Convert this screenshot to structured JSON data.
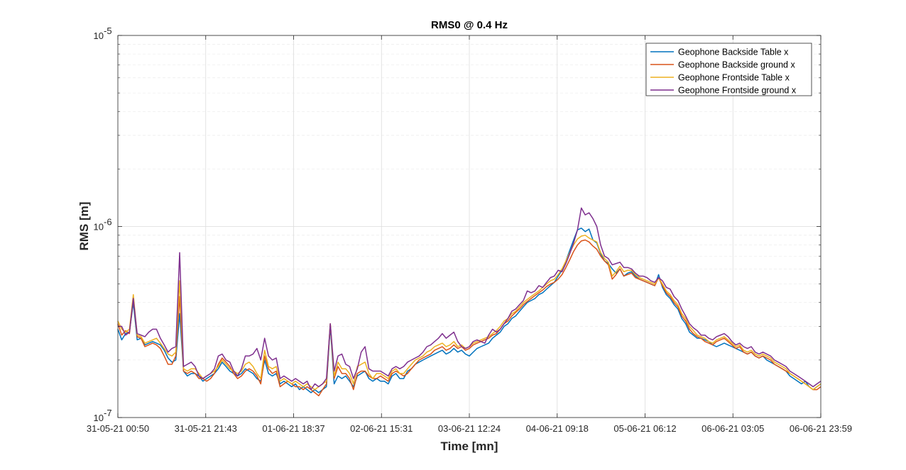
{
  "chart_data": {
    "type": "line",
    "title": "RMS0 @ 0.4 Hz",
    "xlabel": "Time [mn]",
    "ylabel": "RMS [m]",
    "yscale": "log",
    "ylim": [
      1e-07,
      1e-05
    ],
    "y_ticks": [
      {
        "base": "10",
        "exp": "-7"
      },
      {
        "base": "10",
        "exp": "-6"
      },
      {
        "base": "10",
        "exp": "-5"
      }
    ],
    "x_tick_labels": [
      "31-05-21 00:50",
      "31-05-21 21:43",
      "01-06-21 18:37",
      "02-06-21 15:31",
      "03-06-21 12:24",
      "04-06-21 09:18",
      "05-06-21 06:12",
      "06-06-21 03:05",
      "06-06-21 23:59"
    ],
    "grid": true,
    "legend_position": "top-right",
    "series_colors": [
      "#0072BD",
      "#D95319",
      "#EDB120",
      "#7E2F8E"
    ],
    "series": [
      {
        "name": "Geophone Backside Table x",
        "values": [
          2.9e-07,
          2.55e-07,
          2.75e-07,
          2.8e-07,
          4e-07,
          2.55e-07,
          2.6e-07,
          2.4e-07,
          2.45e-07,
          2.5e-07,
          2.45e-07,
          2.4e-07,
          2.25e-07,
          2.05e-07,
          1.95e-07,
          2e-07,
          3.5e-07,
          1.75e-07,
          1.65e-07,
          1.7e-07,
          1.7e-07,
          1.65e-07,
          1.55e-07,
          1.6e-07,
          1.65e-07,
          1.7e-07,
          1.8e-07,
          1.95e-07,
          1.85e-07,
          1.75e-07,
          1.7e-07,
          1.65e-07,
          1.7e-07,
          1.8e-07,
          1.75e-07,
          1.7e-07,
          1.6e-07,
          1.55e-07,
          2e-07,
          1.7e-07,
          1.65e-07,
          1.7e-07,
          1.5e-07,
          1.55e-07,
          1.5e-07,
          1.45e-07,
          1.5e-07,
          1.4e-07,
          1.45e-07,
          1.4e-07,
          1.35e-07,
          1.4e-07,
          1.35e-07,
          1.4e-07,
          1.45e-07,
          3e-07,
          1.5e-07,
          1.65e-07,
          1.6e-07,
          1.65e-07,
          1.55e-07,
          1.45e-07,
          1.65e-07,
          1.7e-07,
          1.75e-07,
          1.6e-07,
          1.55e-07,
          1.6e-07,
          1.55e-07,
          1.55e-07,
          1.5e-07,
          1.65e-07,
          1.7e-07,
          1.6e-07,
          1.6e-07,
          1.75e-07,
          1.8e-07,
          1.9e-07,
          1.95e-07,
          2e-07,
          2.05e-07,
          2.1e-07,
          2.15e-07,
          2.2e-07,
          2.25e-07,
          2.15e-07,
          2.2e-07,
          2.3e-07,
          2.2e-07,
          2.25e-07,
          2.15e-07,
          2.1e-07,
          2.2e-07,
          2.3e-07,
          2.35e-07,
          2.4e-07,
          2.45e-07,
          2.6e-07,
          2.7e-07,
          2.8e-07,
          3e-07,
          3.1e-07,
          3.3e-07,
          3.4e-07,
          3.6e-07,
          3.8e-07,
          4e-07,
          4.1e-07,
          4.2e-07,
          4.4e-07,
          4.5e-07,
          4.7e-07,
          4.9e-07,
          5.1e-07,
          5.5e-07,
          5.9e-07,
          6.6e-07,
          7.5e-07,
          8.5e-07,
          9.6e-07,
          9.8e-07,
          9.4e-07,
          9.7e-07,
          8.5e-07,
          8.2e-07,
          7.2e-07,
          6.6e-07,
          6.4e-07,
          6e-07,
          5.7e-07,
          6e-07,
          5.5e-07,
          5.7e-07,
          5.8e-07,
          5.5e-07,
          5.3e-07,
          5.2e-07,
          5.1e-07,
          5e-07,
          4.9e-07,
          5.6e-07,
          4.8e-07,
          4.4e-07,
          4.2e-07,
          3.9e-07,
          3.7e-07,
          3.3e-07,
          3.1e-07,
          2.8e-07,
          2.7e-07,
          2.6e-07,
          2.6e-07,
          2.55e-07,
          2.5e-07,
          2.4e-07,
          2.35e-07,
          2.4e-07,
          2.45e-07,
          2.4e-07,
          2.35e-07,
          2.3e-07,
          2.25e-07,
          2.2e-07,
          2.15e-07,
          2.2e-07,
          2.1e-07,
          2.05e-07,
          2.1e-07,
          2e-07,
          1.95e-07,
          1.9e-07,
          1.85e-07,
          1.8e-07,
          1.75e-07,
          1.65e-07,
          1.6e-07,
          1.55e-07,
          1.5e-07,
          1.55e-07,
          1.45e-07,
          1.4e-07,
          1.45e-07,
          1.5e-07
        ]
      },
      {
        "name": "Geophone Backside ground x",
        "values": [
          3.1e-07,
          2.7e-07,
          2.85e-07,
          2.75e-07,
          4.2e-07,
          2.65e-07,
          2.6e-07,
          2.35e-07,
          2.4e-07,
          2.45e-07,
          2.4e-07,
          2.3e-07,
          2.1e-07,
          1.9e-07,
          1.9e-07,
          2.1e-07,
          4.3e-07,
          1.75e-07,
          1.7e-07,
          1.75e-07,
          1.7e-07,
          1.6e-07,
          1.6e-07,
          1.55e-07,
          1.6e-07,
          1.7e-07,
          1.9e-07,
          2.05e-07,
          1.95e-07,
          1.85e-07,
          1.7e-07,
          1.6e-07,
          1.65e-07,
          1.75e-07,
          1.8e-07,
          1.75e-07,
          1.65e-07,
          1.5e-07,
          2.1e-07,
          1.8e-07,
          1.7e-07,
          1.75e-07,
          1.45e-07,
          1.5e-07,
          1.55e-07,
          1.5e-07,
          1.45e-07,
          1.45e-07,
          1.4e-07,
          1.45e-07,
          1.4e-07,
          1.35e-07,
          1.3e-07,
          1.4e-07,
          1.5e-07,
          3.1e-07,
          1.6e-07,
          1.85e-07,
          1.7e-07,
          1.7e-07,
          1.6e-07,
          1.4e-07,
          1.7e-07,
          1.75e-07,
          1.75e-07,
          1.65e-07,
          1.6e-07,
          1.6e-07,
          1.65e-07,
          1.6e-07,
          1.55e-07,
          1.7e-07,
          1.75e-07,
          1.7e-07,
          1.65e-07,
          1.7e-07,
          1.8e-07,
          1.9e-07,
          2e-07,
          2.05e-07,
          2.1e-07,
          2.15e-07,
          2.25e-07,
          2.3e-07,
          2.35e-07,
          2.25e-07,
          2.3e-07,
          2.4e-07,
          2.3e-07,
          2.35e-07,
          2.25e-07,
          2.3e-07,
          2.4e-07,
          2.45e-07,
          2.5e-07,
          2.55e-07,
          2.6e-07,
          2.7e-07,
          2.75e-07,
          2.9e-07,
          3.1e-07,
          3.2e-07,
          3.4e-07,
          3.55e-07,
          3.7e-07,
          3.9e-07,
          4.05e-07,
          4.2e-07,
          4.35e-07,
          4.5e-07,
          4.65e-07,
          4.85e-07,
          5e-07,
          5.1e-07,
          5.3e-07,
          5.6e-07,
          6.1e-07,
          6.7e-07,
          7.4e-07,
          8e-07,
          8.4e-07,
          8.5e-07,
          8.3e-07,
          7.9e-07,
          7.6e-07,
          7e-07,
          6.6e-07,
          6.3e-07,
          5.3e-07,
          5.6e-07,
          6e-07,
          5.5e-07,
          5.6e-07,
          5.7e-07,
          5.4e-07,
          5.3e-07,
          5.2e-07,
          5.1e-07,
          5e-07,
          4.9e-07,
          5.4e-07,
          4.9e-07,
          4.5e-07,
          4.3e-07,
          4e-07,
          3.8e-07,
          3.4e-07,
          3.2e-07,
          2.9e-07,
          2.75e-07,
          2.65e-07,
          2.6e-07,
          2.5e-07,
          2.45e-07,
          2.4e-07,
          2.5e-07,
          2.55e-07,
          2.6e-07,
          2.5e-07,
          2.4e-07,
          2.3e-07,
          2.35e-07,
          2.2e-07,
          2.15e-07,
          2.2e-07,
          2.1e-07,
          2.05e-07,
          2.1e-07,
          2.05e-07,
          2e-07,
          1.9e-07,
          1.85e-07,
          1.8e-07,
          1.75e-07,
          1.7e-07,
          1.65e-07,
          1.6e-07,
          1.55e-07,
          1.5e-07,
          1.45e-07,
          1.4e-07,
          1.4e-07,
          1.45e-07
        ]
      },
      {
        "name": "Geophone Frontside Table x",
        "values": [
          3.2e-07,
          2.9e-07,
          2.8e-07,
          2.9e-07,
          4.4e-07,
          2.7e-07,
          2.65e-07,
          2.45e-07,
          2.5e-07,
          2.55e-07,
          2.6e-07,
          2.45e-07,
          2.3e-07,
          2.15e-07,
          2.1e-07,
          2.2e-07,
          5.2e-07,
          1.8e-07,
          1.75e-07,
          1.8e-07,
          1.8e-07,
          1.7e-07,
          1.6e-07,
          1.65e-07,
          1.7e-07,
          1.75e-07,
          1.85e-07,
          2e-07,
          1.9e-07,
          1.8e-07,
          1.75e-07,
          1.7e-07,
          1.75e-07,
          1.9e-07,
          1.95e-07,
          1.85e-07,
          1.7e-07,
          1.6e-07,
          2.25e-07,
          1.85e-07,
          1.8e-07,
          1.85e-07,
          1.55e-07,
          1.6e-07,
          1.55e-07,
          1.5e-07,
          1.55e-07,
          1.5e-07,
          1.45e-07,
          1.5e-07,
          1.45e-07,
          1.4e-07,
          1.45e-07,
          1.5e-07,
          1.55e-07,
          3.1e-07,
          1.65e-07,
          1.95e-07,
          1.8e-07,
          1.8e-07,
          1.7e-07,
          1.5e-07,
          1.85e-07,
          1.9e-07,
          1.95e-07,
          1.7e-07,
          1.6e-07,
          1.7e-07,
          1.7e-07,
          1.65e-07,
          1.6e-07,
          1.75e-07,
          1.8e-07,
          1.7e-07,
          1.7e-07,
          1.8e-07,
          1.9e-07,
          2e-07,
          2.05e-07,
          2.1e-07,
          2.2e-07,
          2.25e-07,
          2.35e-07,
          2.4e-07,
          2.45e-07,
          2.35e-07,
          2.4e-07,
          2.5e-07,
          2.35e-07,
          2.4e-07,
          2.3e-07,
          2.35e-07,
          2.45e-07,
          2.5e-07,
          2.55e-07,
          2.6e-07,
          2.65e-07,
          2.75e-07,
          2.85e-07,
          3e-07,
          3.2e-07,
          3.3e-07,
          3.5e-07,
          3.6e-07,
          3.8e-07,
          4e-07,
          4.15e-07,
          4.3e-07,
          4.45e-07,
          4.6e-07,
          4.8e-07,
          5e-07,
          5.2e-07,
          5.3e-07,
          5.6e-07,
          6e-07,
          6.6e-07,
          7.3e-07,
          8e-07,
          8.6e-07,
          8.9e-07,
          9e-07,
          8.7e-07,
          8.5e-07,
          8.3e-07,
          7.3e-07,
          6.8e-07,
          6.5e-07,
          5.5e-07,
          5.8e-07,
          6.2e-07,
          5.8e-07,
          5.9e-07,
          5.9e-07,
          5.6e-07,
          5.4e-07,
          5.3e-07,
          5.2e-07,
          5.1e-07,
          5e-07,
          5.4e-07,
          5e-07,
          4.6e-07,
          4.4e-07,
          4.1e-07,
          3.9e-07,
          3.5e-07,
          3.3e-07,
          3e-07,
          2.85e-07,
          2.7e-07,
          2.65e-07,
          2.6e-07,
          2.5e-07,
          2.45e-07,
          2.55e-07,
          2.6e-07,
          2.65e-07,
          2.55e-07,
          2.45e-07,
          2.35e-07,
          2.4e-07,
          2.25e-07,
          2.2e-07,
          2.25e-07,
          2.15e-07,
          2.1e-07,
          2.15e-07,
          2.1e-07,
          2.05e-07,
          1.95e-07,
          1.9e-07,
          1.85e-07,
          1.8e-07,
          1.7e-07,
          1.65e-07,
          1.6e-07,
          1.55e-07,
          1.5e-07,
          1.45e-07,
          1.4e-07,
          1.45e-07,
          1.5e-07
        ]
      },
      {
        "name": "Geophone Frontside ground x",
        "values": [
          3e-07,
          3e-07,
          2.7e-07,
          2.8e-07,
          4.2e-07,
          2.75e-07,
          2.7e-07,
          2.65e-07,
          2.8e-07,
          2.9e-07,
          2.9e-07,
          2.6e-07,
          2.4e-07,
          2.2e-07,
          2.3e-07,
          2.35e-07,
          7.3e-07,
          1.85e-07,
          1.9e-07,
          1.95e-07,
          1.85e-07,
          1.65e-07,
          1.6e-07,
          1.65e-07,
          1.7e-07,
          1.8e-07,
          2.1e-07,
          2.15e-07,
          2e-07,
          1.95e-07,
          1.75e-07,
          1.65e-07,
          1.8e-07,
          2.1e-07,
          2.1e-07,
          2.15e-07,
          2.3e-07,
          2e-07,
          2.6e-07,
          2.1e-07,
          2e-07,
          2.05e-07,
          1.6e-07,
          1.65e-07,
          1.6e-07,
          1.55e-07,
          1.6e-07,
          1.55e-07,
          1.5e-07,
          1.55e-07,
          1.4e-07,
          1.5e-07,
          1.45e-07,
          1.5e-07,
          1.6e-07,
          3.1e-07,
          1.75e-07,
          2.1e-07,
          2.15e-07,
          1.9e-07,
          1.85e-07,
          1.6e-07,
          1.8e-07,
          2.2e-07,
          2.35e-07,
          1.8e-07,
          1.75e-07,
          1.75e-07,
          1.75e-07,
          1.7e-07,
          1.65e-07,
          1.8e-07,
          1.85e-07,
          1.8e-07,
          1.85e-07,
          1.95e-07,
          2e-07,
          2.05e-07,
          2.1e-07,
          2.2e-07,
          2.35e-07,
          2.4e-07,
          2.5e-07,
          2.6e-07,
          2.75e-07,
          2.6e-07,
          2.7e-07,
          2.8e-07,
          2.5e-07,
          2.35e-07,
          2.3e-07,
          2.35e-07,
          2.5e-07,
          2.55e-07,
          2.5e-07,
          2.45e-07,
          2.7e-07,
          2.9e-07,
          2.8e-07,
          2.9e-07,
          3.1e-07,
          3.3e-07,
          3.6e-07,
          3.7e-07,
          3.9e-07,
          4.1e-07,
          4.6e-07,
          4.5e-07,
          4.6e-07,
          4.9e-07,
          4.8e-07,
          5.1e-07,
          5.4e-07,
          5.5e-07,
          5.9e-07,
          5.8e-07,
          6.4e-07,
          7.2e-07,
          8.2e-07,
          9.6e-07,
          1.25e-06,
          1.15e-06,
          1.18e-06,
          1.1e-06,
          1e-06,
          8e-07,
          7e-07,
          6.8e-07,
          6.3e-07,
          6.4e-07,
          6.5e-07,
          6.1e-07,
          6.1e-07,
          6e-07,
          5.7e-07,
          5.5e-07,
          5.5e-07,
          5.4e-07,
          5.2e-07,
          5.1e-07,
          5.4e-07,
          5.2e-07,
          4.8e-07,
          4.7e-07,
          4.3e-07,
          4.1e-07,
          3.7e-07,
          3.4e-07,
          3.1e-07,
          2.95e-07,
          2.85e-07,
          2.7e-07,
          2.7e-07,
          2.6e-07,
          2.55e-07,
          2.65e-07,
          2.7e-07,
          2.75e-07,
          2.65e-07,
          2.5e-07,
          2.4e-07,
          2.45e-07,
          2.35e-07,
          2.3e-07,
          2.35e-07,
          2.2e-07,
          2.15e-07,
          2.2e-07,
          2.15e-07,
          2.1e-07,
          2e-07,
          1.95e-07,
          1.9e-07,
          1.85e-07,
          1.75e-07,
          1.7e-07,
          1.65e-07,
          1.6e-07,
          1.55e-07,
          1.5e-07,
          1.45e-07,
          1.5e-07,
          1.55e-07
        ]
      }
    ]
  }
}
